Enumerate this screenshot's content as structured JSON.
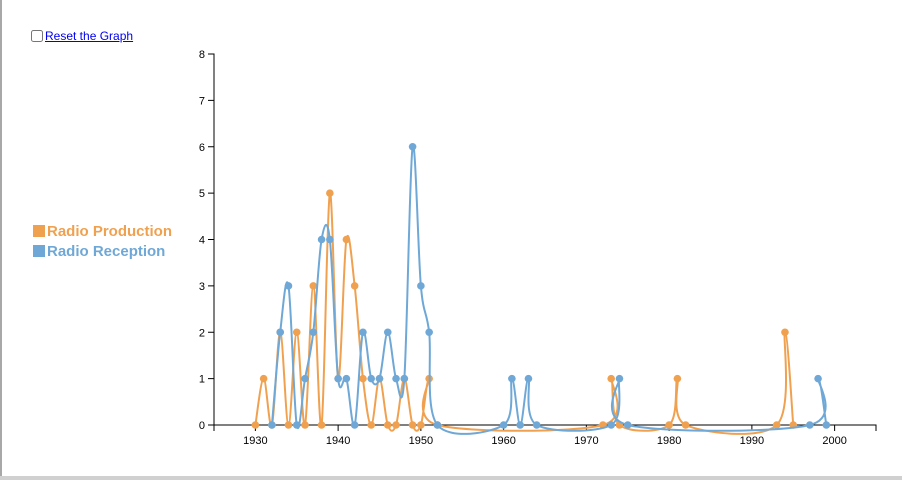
{
  "controls": {
    "reset_label": "Reset the Graph"
  },
  "chart_data": {
    "type": "line",
    "title": "",
    "xlabel": "",
    "ylabel": "",
    "xlim": [
      1925,
      2005
    ],
    "ylim": [
      0,
      8
    ],
    "x_ticks": [
      1930,
      1940,
      1950,
      1960,
      1970,
      1980,
      1990,
      2000
    ],
    "y_ticks": [
      0,
      1,
      2,
      3,
      4,
      5,
      6,
      7,
      8
    ],
    "grid": false,
    "legend_position": "left",
    "series": [
      {
        "name": "Radio Production",
        "color": "#f0a150",
        "points": [
          [
            1930,
            0
          ],
          [
            1931,
            1
          ],
          [
            1932,
            0
          ],
          [
            1933,
            2
          ],
          [
            1934,
            0
          ],
          [
            1935,
            2
          ],
          [
            1936,
            0
          ],
          [
            1937,
            3
          ],
          [
            1938,
            0
          ],
          [
            1939,
            5
          ],
          [
            1940,
            1
          ],
          [
            1941,
            4
          ],
          [
            1942,
            3
          ],
          [
            1943,
            1
          ],
          [
            1944,
            0
          ],
          [
            1945,
            1
          ],
          [
            1946,
            0
          ],
          [
            1947,
            0
          ],
          [
            1948,
            1
          ],
          [
            1949,
            0
          ],
          [
            1950,
            0
          ],
          [
            1951,
            1
          ],
          [
            1952,
            0
          ],
          [
            1972,
            0
          ],
          [
            1973,
            1
          ],
          [
            1974,
            0
          ],
          [
            1980,
            0
          ],
          [
            1981,
            1
          ],
          [
            1982,
            0
          ],
          [
            1993,
            0
          ],
          [
            1994,
            2
          ],
          [
            1995,
            0
          ]
        ]
      },
      {
        "name": "Radio Reception",
        "color": "#6fa8d6",
        "points": [
          [
            1932,
            0
          ],
          [
            1933,
            2
          ],
          [
            1934,
            3
          ],
          [
            1935,
            0
          ],
          [
            1936,
            1
          ],
          [
            1937,
            2
          ],
          [
            1938,
            4
          ],
          [
            1939,
            4
          ],
          [
            1940,
            1
          ],
          [
            1941,
            1
          ],
          [
            1942,
            0
          ],
          [
            1943,
            2
          ],
          [
            1944,
            1
          ],
          [
            1945,
            1
          ],
          [
            1946,
            2
          ],
          [
            1947,
            1
          ],
          [
            1948,
            1
          ],
          [
            1949,
            6
          ],
          [
            1950,
            3
          ],
          [
            1951,
            2
          ],
          [
            1952,
            0
          ],
          [
            1960,
            0
          ],
          [
            1961,
            1
          ],
          [
            1962,
            0
          ],
          [
            1963,
            1
          ],
          [
            1964,
            0
          ],
          [
            1973,
            0
          ],
          [
            1974,
            1
          ],
          [
            1975,
            0
          ],
          [
            1997,
            0
          ],
          [
            1998,
            1
          ],
          [
            1999,
            0
          ]
        ]
      }
    ]
  }
}
